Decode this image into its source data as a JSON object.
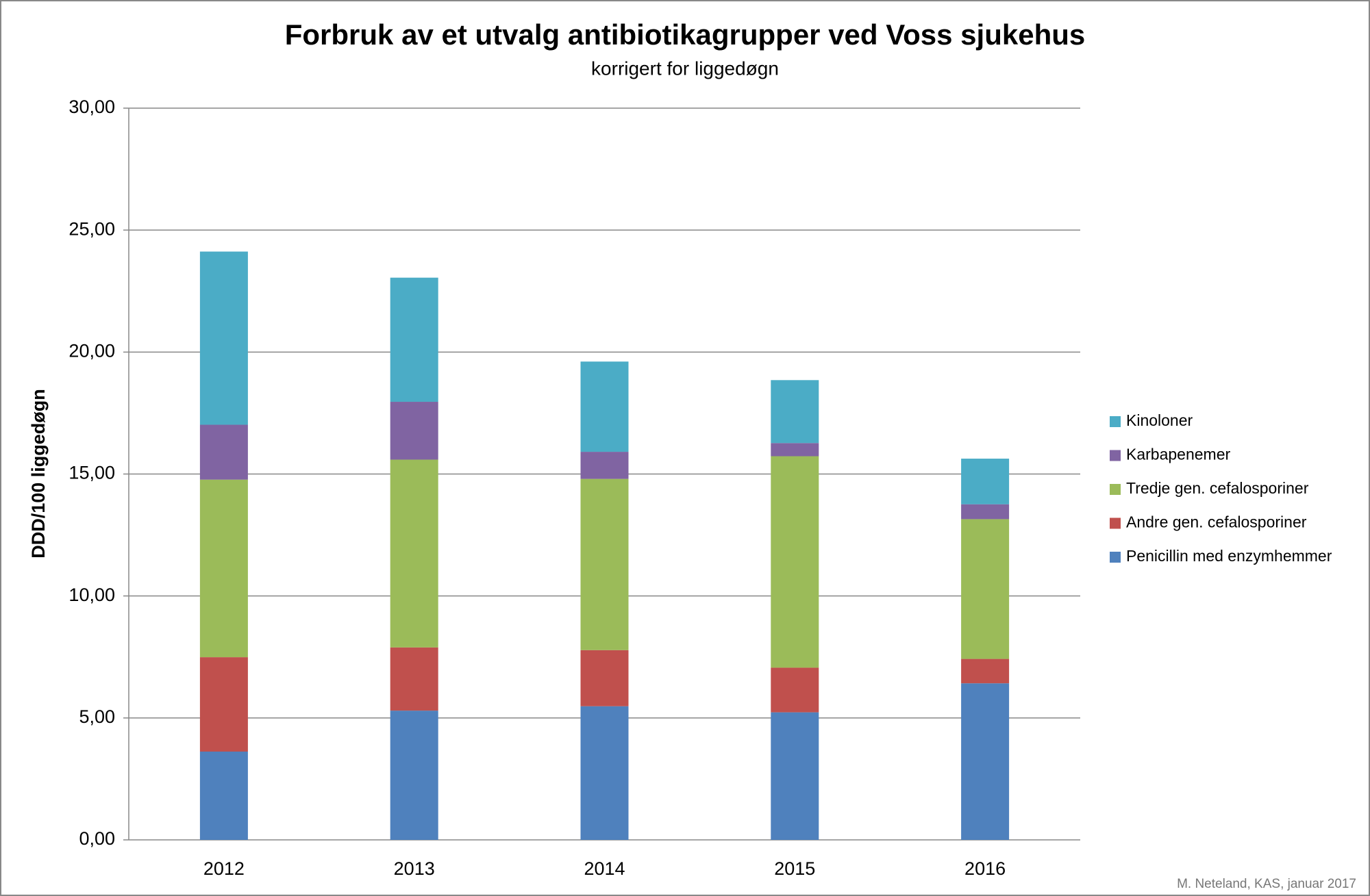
{
  "chart_data": {
    "type": "stacked-bar",
    "title": "Forbruk av et utvalg antibiotikagrupper ved Voss sjukehus",
    "subtitle": "korrigert for liggedøgn",
    "y_label": "DDD/100 liggedøgn",
    "footnote": "M. Neteland, KAS, januar 2017",
    "categories": [
      "2012",
      "2013",
      "2014",
      "2015",
      "2016"
    ],
    "series": [
      {
        "name": "Penicillin med enzymhemmer",
        "color": "#4f81bd",
        "values": [
          3.62,
          5.3,
          5.48,
          5.23,
          6.42
        ]
      },
      {
        "name": "Andre gen. cefalosporiner",
        "color": "#c0504d",
        "values": [
          3.87,
          2.59,
          2.3,
          1.83,
          1.0
        ]
      },
      {
        "name": "Tredje gen. cefalosporiner",
        "color": "#9bbb59",
        "values": [
          7.28,
          7.7,
          7.02,
          8.67,
          5.73
        ]
      },
      {
        "name": "Karbapenemer",
        "color": "#8064a2",
        "values": [
          2.25,
          2.37,
          1.11,
          0.54,
          0.61
        ]
      },
      {
        "name": "Kinoloner",
        "color": "#4bacc6",
        "values": [
          7.1,
          5.09,
          3.7,
          2.58,
          1.87
        ]
      }
    ],
    "ylim": [
      0,
      30
    ],
    "yticks": [
      {
        "value": 0,
        "label": "0,00"
      },
      {
        "value": 5,
        "label": "5,00"
      },
      {
        "value": 10,
        "label": "10,00"
      },
      {
        "value": 15,
        "label": "15,00"
      },
      {
        "value": 20,
        "label": "20,00"
      },
      {
        "value": 25,
        "label": "25,00"
      },
      {
        "value": 30,
        "label": "30,00"
      }
    ],
    "grid": true,
    "legend": "right"
  }
}
